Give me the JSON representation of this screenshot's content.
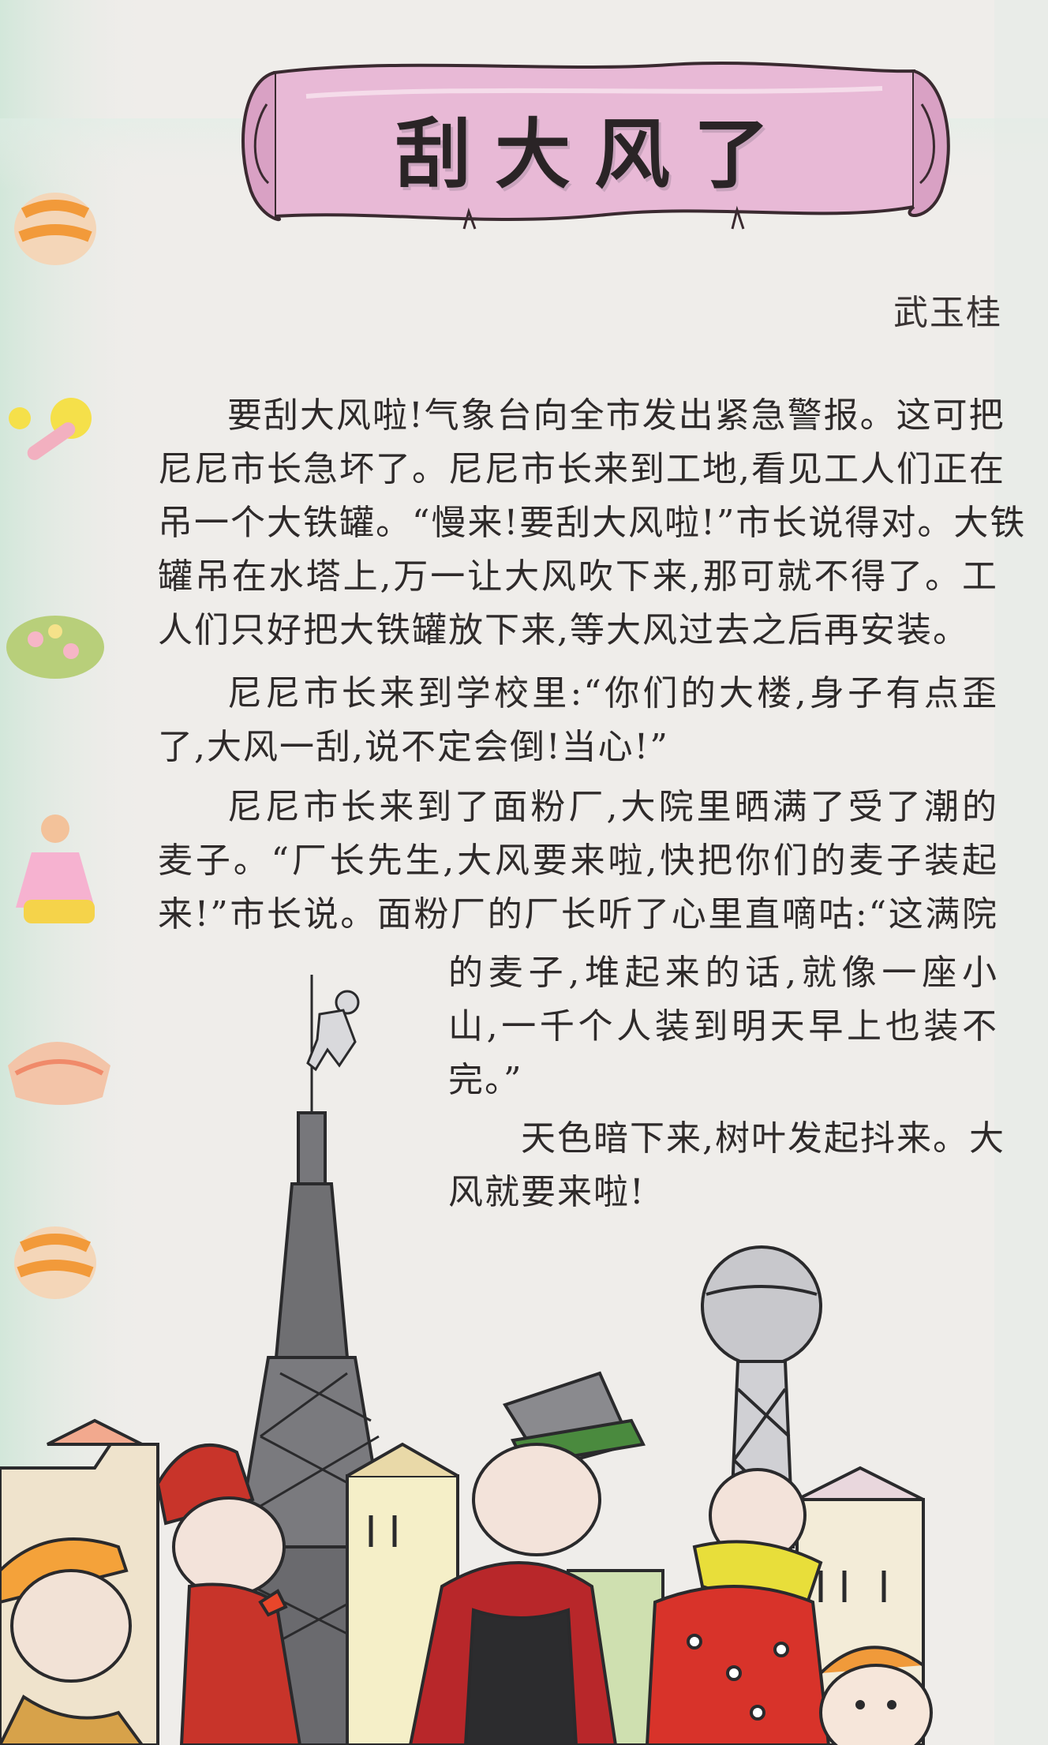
{
  "title": "刮大风了",
  "author": "武玉桂",
  "story": {
    "lines": [
      "要刮大风啦!气象台向全市发出紧急警报。这可把",
      "尼尼市长急坏了。尼尼市长来到工地,看见工人们正在",
      "吊一个大铁罐。“慢来!要刮大风啦!”市长说得对。大铁",
      "罐吊在水塔上,万一让大风吹下来,那可就不得了。工",
      "人们只好把大铁罐放下来,等大风过去之后再安装。",
      "尼尼市长来到学校里:“你们的大楼,身子有点歪",
      "了,大风一刮,说不定会倒!当心!”",
      "尼尼市长来到了面粉厂,大院里晒满了受了潮的",
      "麦子。“厂长先生,大风要来啦,快把你们的麦子装起",
      "来!”市长说。面粉厂的厂长听了心里直嘀咕:“这满院",
      "的麦子,堆起来的话,就像一座小",
      "山,一千个人装到明天早上也装不",
      "完。”",
      "天色暗下来,树叶发起抖来。大",
      "风就要来啦!"
    ]
  },
  "colors": {
    "scroll_pink": "#e8b9d6",
    "scroll_outline": "#3a2a30",
    "page_background": "#efedea",
    "side_glow": "#cfe6d8",
    "coat_red": "#c8342a",
    "scarf_yellow": "#e8de3a",
    "tower_gray": "#6f6f72"
  },
  "icons": {
    "title_scroll": "scroll-banner",
    "side_decorations": [
      "sock-decoration",
      "rattle-decoration",
      "flower-decoration",
      "doll-decoration",
      "cake-decoration",
      "sock-decoration"
    ],
    "illustration": "townspeople-watching-tower"
  }
}
